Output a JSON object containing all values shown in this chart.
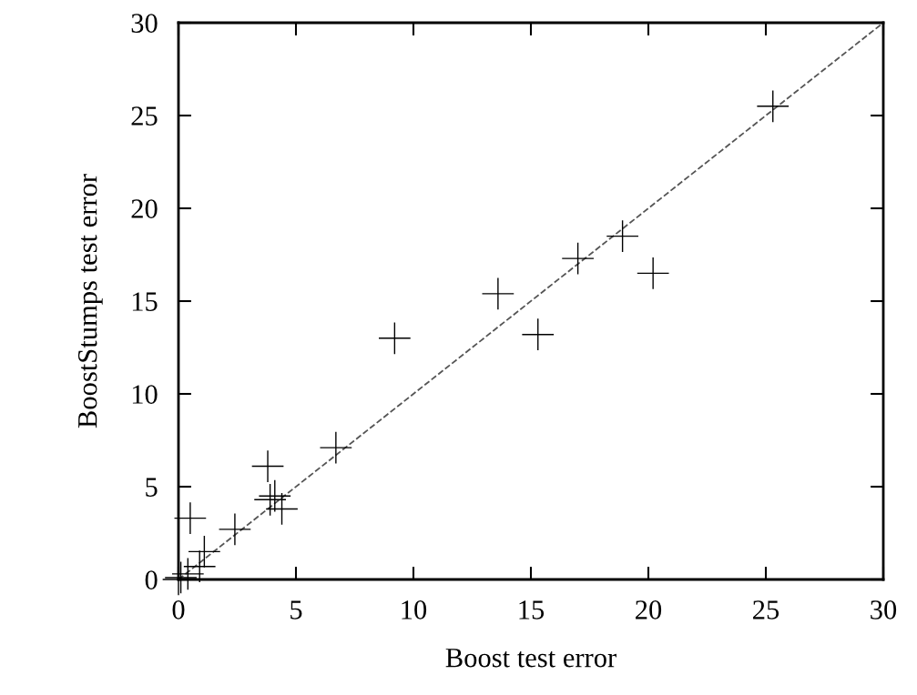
{
  "chart_data": {
    "type": "scatter",
    "xlabel": "Boost test error",
    "ylabel": "BoostStumps test error",
    "xlim": [
      0,
      30
    ],
    "ylim": [
      0,
      30
    ],
    "xticks": [
      0,
      5,
      10,
      15,
      20,
      25,
      30
    ],
    "yticks": [
      0,
      5,
      10,
      15,
      20,
      25,
      30
    ],
    "grid": false,
    "marker": "cross",
    "series": [
      {
        "color": "#000000",
        "x": [
          25.3,
          17.0,
          18.9,
          20.2,
          13.6,
          15.3,
          9.2,
          6.7,
          3.8,
          3.9,
          4.4,
          4.1,
          2.4,
          1.1,
          0.5,
          0.9,
          0.4,
          0.1,
          0.0
        ],
        "values": [
          25.5,
          17.3,
          18.5,
          16.5,
          15.4,
          13.2,
          13.0,
          7.1,
          6.1,
          4.3,
          3.8,
          4.5,
          2.7,
          1.5,
          3.3,
          0.7,
          0.3,
          0.1,
          0.0
        ]
      },
      {
        "type": "line",
        "color": "#555555",
        "line_style": "dashed",
        "marker": "none",
        "x": [
          0,
          30
        ],
        "values": [
          0,
          30
        ]
      }
    ]
  }
}
